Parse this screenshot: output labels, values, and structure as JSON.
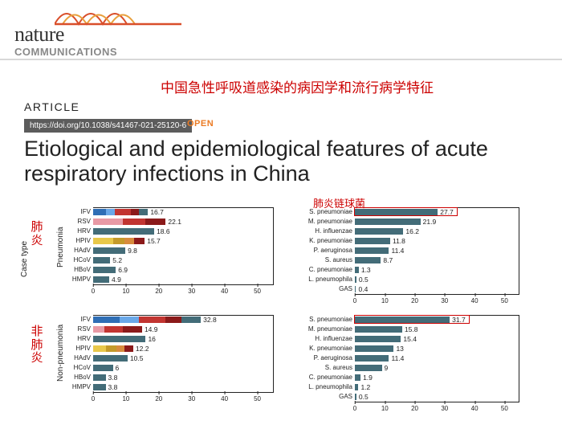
{
  "journal": {
    "nature": "nature",
    "communications": "COMMUNICATIONS"
  },
  "red_top": "中国急性呼吸道感染的病因学和流行病学特征",
  "article_label": "ARTICLE",
  "doi": "https://doi.org/10.1038/s41467-021-25120-6",
  "open": "OPEN",
  "title": "Etiological and epidemiological features of acute respiratory infections in China",
  "case_type": "Case type",
  "panel_labels": {
    "p": "Pneumonia",
    "np": "Non-pneumonia"
  },
  "cn_labels": {
    "pneu": "肺炎",
    "nonpneu": "非肺炎",
    "strep": "肺炎链球菌"
  },
  "axis": {
    "xmax": 55,
    "ticks": [
      0,
      10,
      20,
      30,
      40,
      50
    ]
  },
  "colors": {
    "teal": "#436c78",
    "red": "#c23531",
    "dkred": "#8b1a1a",
    "blue": "#2f6eb5",
    "ltblue": "#6aa8e8",
    "pink": "#e89aa5",
    "yellow": "#e8c84a",
    "gold": "#c49a2a",
    "orange": "#d88b3d",
    "grey": "#b0b0b0",
    "dgrey": "#7a7a7a"
  },
  "left_p": {
    "label_w": 38,
    "track_w": 225,
    "rows": [
      {
        "label": "IFV",
        "val": 16.7,
        "seg": [
          [
            "blue",
            0,
            4
          ],
          [
            "ltblue",
            4,
            6.5
          ],
          [
            "red",
            6.5,
            11.5
          ],
          [
            "dkred",
            11.5,
            14
          ],
          [
            "teal",
            14,
            16.7
          ]
        ]
      },
      {
        "label": "RSV",
        "val": 22.1,
        "seg": [
          [
            "pink",
            0,
            5
          ],
          [
            "pink",
            5,
            9
          ],
          [
            "red",
            9,
            16
          ],
          [
            "dkred",
            16,
            22.1
          ]
        ]
      },
      {
        "label": "HRV",
        "val": 18.6,
        "seg": [
          [
            "teal",
            0,
            18.6
          ]
        ]
      },
      {
        "label": "HPIV",
        "val": 15.7,
        "seg": [
          [
            "yellow",
            0,
            6
          ],
          [
            "gold",
            6,
            9.5
          ],
          [
            "orange",
            9.5,
            12.5
          ],
          [
            "dkred",
            12.5,
            15.7
          ]
        ]
      },
      {
        "label": "HAdV",
        "val": 9.8,
        "seg": [
          [
            "teal",
            0,
            9.8
          ]
        ]
      },
      {
        "label": "HCoV",
        "val": 5.2,
        "seg": [
          [
            "teal",
            0,
            5.2
          ]
        ]
      },
      {
        "label": "HBoV",
        "val": 6.9,
        "seg": [
          [
            "teal",
            0,
            6.9
          ]
        ]
      },
      {
        "label": "HMPV",
        "val": 4.9,
        "seg": [
          [
            "teal",
            0,
            4.9
          ]
        ]
      }
    ]
  },
  "left_np": {
    "label_w": 38,
    "track_w": 225,
    "rows": [
      {
        "label": "IFV",
        "val": 32.8,
        "seg": [
          [
            "blue",
            0,
            8
          ],
          [
            "ltblue",
            8,
            14
          ],
          [
            "red",
            14,
            22
          ],
          [
            "dkred",
            22,
            27
          ],
          [
            "teal",
            27,
            32.8
          ]
        ]
      },
      {
        "label": "RSV",
        "val": 14.9,
        "seg": [
          [
            "pink",
            0,
            3.5
          ],
          [
            "red",
            3.5,
            9
          ],
          [
            "dkred",
            9,
            14.9
          ]
        ]
      },
      {
        "label": "HRV",
        "val": 16,
        "seg": [
          [
            "teal",
            0,
            16
          ]
        ]
      },
      {
        "label": "HPIV",
        "val": 12.2,
        "seg": [
          [
            "yellow",
            0,
            4
          ],
          [
            "gold",
            4,
            7
          ],
          [
            "orange",
            7,
            9.5
          ],
          [
            "dkred",
            9.5,
            12.2
          ]
        ]
      },
      {
        "label": "HAdV",
        "val": 10.5,
        "seg": [
          [
            "teal",
            0,
            10.5
          ]
        ]
      },
      {
        "label": "HCoV",
        "val": 6,
        "seg": [
          [
            "teal",
            0,
            6
          ]
        ]
      },
      {
        "label": "HBoV",
        "val": 3.8,
        "seg": [
          [
            "teal",
            0,
            3.8
          ]
        ]
      },
      {
        "label": "HMPV",
        "val": 3.8,
        "seg": [
          [
            "teal",
            0,
            3.8
          ]
        ]
      }
    ]
  },
  "right_p": {
    "label_w": 62,
    "track_w": 205,
    "rows": [
      {
        "label": "S. pneumoniae",
        "val": 27.7,
        "hl": true
      },
      {
        "label": "M. pneumoniae",
        "val": 21.9
      },
      {
        "label": "H. influenzae",
        "val": 16.2
      },
      {
        "label": "K. pneumoniae",
        "val": 11.8
      },
      {
        "label": "P. aeruginosa",
        "val": 11.4
      },
      {
        "label": "S. aureus",
        "val": 8.7
      },
      {
        "label": "C. pneumoniae",
        "val": 1.3
      },
      {
        "label": "L. pneumophila",
        "val": 0.5
      },
      {
        "label": "GAS",
        "val": 0.4
      }
    ]
  },
  "right_np": {
    "label_w": 62,
    "track_w": 205,
    "rows": [
      {
        "label": "S. pneumoniae",
        "val": 31.7,
        "hl": true
      },
      {
        "label": "M. pneumoniae",
        "val": 15.8
      },
      {
        "label": "H. influenzae",
        "val": 15.4
      },
      {
        "label": "K. pneumoniae",
        "val": 13
      },
      {
        "label": "P. aeruginosa",
        "val": 11.4
      },
      {
        "label": "S. aureus",
        "val": 9
      },
      {
        "label": "C. pneumoniae",
        "val": 1.9
      },
      {
        "label": "L. pneumophila",
        "val": 1.2
      },
      {
        "label": "GAS",
        "val": 0.5
      }
    ]
  }
}
